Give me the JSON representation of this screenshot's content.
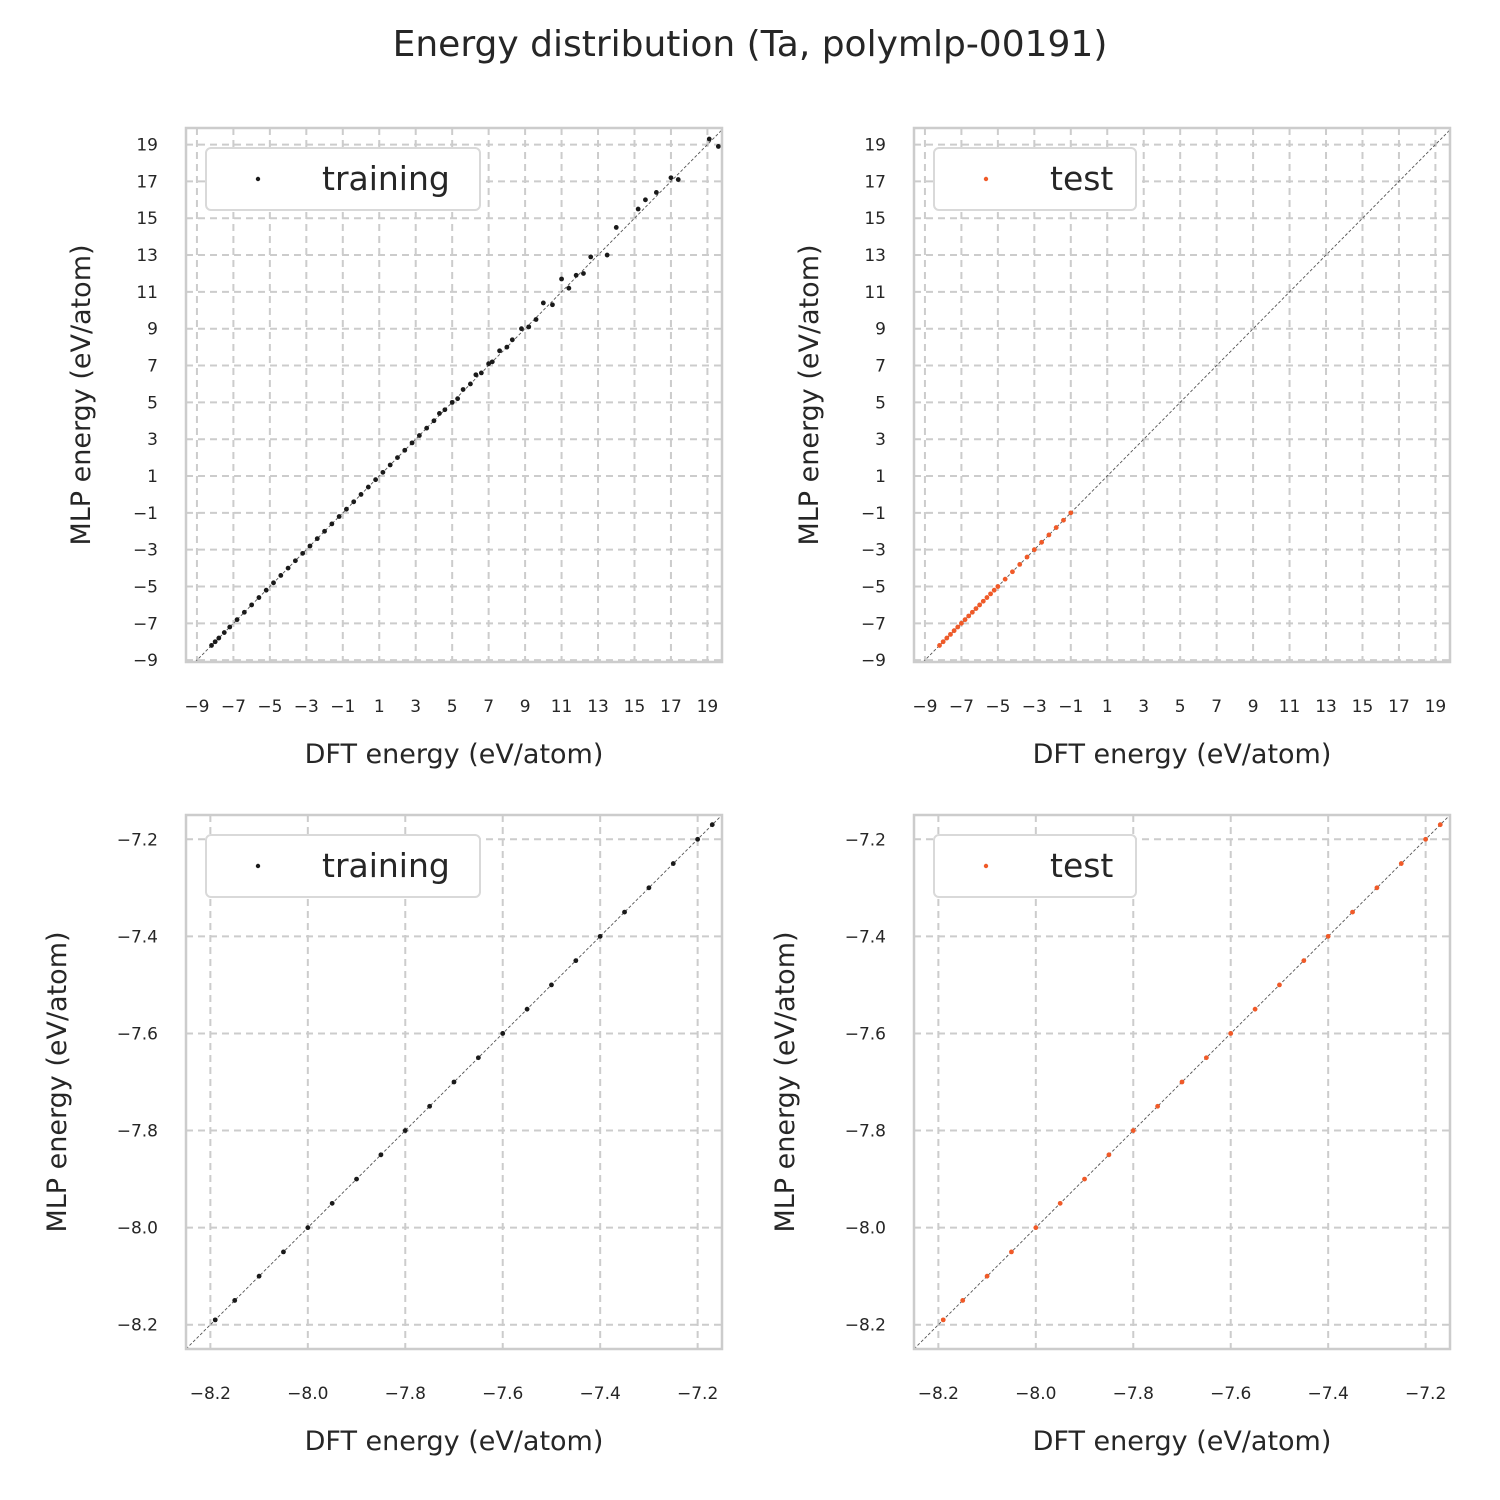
{
  "figure": {
    "title": "Energy distribution (Ta, polymlp-00191)"
  },
  "colors": {
    "training": "#1a1a1a",
    "test": "#f05a28",
    "grid": "#cccccc",
    "diagonal": "#555555"
  },
  "chart_data": [
    {
      "type": "scatter",
      "panel": "top-left",
      "xlabel": "DFT energy (eV/atom)",
      "ylabel": "MLP energy (eV/atom)",
      "xlim": [
        -9.6,
        19.8
      ],
      "ylim": [
        -9.1,
        19.9
      ],
      "xticks": [
        -9,
        -7,
        -5,
        -3,
        -1,
        1,
        3,
        5,
        7,
        9,
        11,
        13,
        15,
        17,
        19
      ],
      "xtick_labels": [
        "−9",
        "−7",
        "−5",
        "−3",
        "−1",
        "1",
        "3",
        "5",
        "7",
        "9",
        "11",
        "13",
        "15",
        "17",
        "19"
      ],
      "yticks": [
        -9,
        -7,
        -5,
        -3,
        -1,
        1,
        3,
        5,
        7,
        9,
        11,
        13,
        15,
        17,
        19
      ],
      "ytick_labels": [
        "−9",
        "−7",
        "−5",
        "−3",
        "−1",
        "1",
        "3",
        "5",
        "7",
        "9",
        "11",
        "13",
        "15",
        "17",
        "19"
      ],
      "grid": true,
      "legend": "upper left",
      "series": [
        {
          "name": "training",
          "color": "#1a1a1a",
          "x": [
            -8.2,
            -8.0,
            -7.8,
            -7.5,
            -7.2,
            -6.8,
            -6.4,
            -6.0,
            -5.6,
            -5.2,
            -4.8,
            -4.4,
            -4.0,
            -3.6,
            -3.2,
            -2.8,
            -2.4,
            -2.0,
            -1.6,
            -1.2,
            -0.8,
            -0.4,
            0.0,
            0.4,
            0.8,
            1.2,
            1.6,
            2.0,
            2.4,
            2.8,
            3.2,
            3.6,
            4.0,
            4.3,
            4.6,
            5.0,
            5.3,
            5.6,
            6.0,
            6.3,
            6.6,
            7.0,
            7.2,
            7.6,
            8.0,
            8.3,
            8.8,
            9.2,
            9.6,
            10.0,
            10.5,
            11.0,
            11.4,
            11.8,
            12.2,
            12.6,
            13.5,
            14.0,
            15.2,
            15.6,
            16.2,
            17.0,
            17.4,
            19.1,
            19.6
          ],
          "y": [
            -8.2,
            -8.0,
            -7.8,
            -7.5,
            -7.2,
            -6.8,
            -6.4,
            -6.0,
            -5.6,
            -5.2,
            -4.8,
            -4.4,
            -4.0,
            -3.6,
            -3.2,
            -2.8,
            -2.4,
            -2.0,
            -1.6,
            -1.2,
            -0.8,
            -0.4,
            0.0,
            0.4,
            0.8,
            1.2,
            1.6,
            2.0,
            2.4,
            2.8,
            3.2,
            3.6,
            4.0,
            4.4,
            4.6,
            5.0,
            5.2,
            5.7,
            6.0,
            6.5,
            6.6,
            7.1,
            7.2,
            7.8,
            8.0,
            8.4,
            9.0,
            9.1,
            9.5,
            10.4,
            10.3,
            11.7,
            11.2,
            11.9,
            12.0,
            12.9,
            13.0,
            14.5,
            15.5,
            16.0,
            16.4,
            17.2,
            17.1,
            19.3,
            18.9
          ]
        }
      ]
    },
    {
      "type": "scatter",
      "panel": "top-right",
      "xlabel": "DFT energy (eV/atom)",
      "ylabel": "MLP energy (eV/atom)",
      "xlim": [
        -9.6,
        19.8
      ],
      "ylim": [
        -9.1,
        19.9
      ],
      "xticks": [
        -9,
        -7,
        -5,
        -3,
        -1,
        1,
        3,
        5,
        7,
        9,
        11,
        13,
        15,
        17,
        19
      ],
      "xtick_labels": [
        "−9",
        "−7",
        "−5",
        "−3",
        "−1",
        "1",
        "3",
        "5",
        "7",
        "9",
        "11",
        "13",
        "15",
        "17",
        "19"
      ],
      "yticks": [
        -9,
        -7,
        -5,
        -3,
        -1,
        1,
        3,
        5,
        7,
        9,
        11,
        13,
        15,
        17,
        19
      ],
      "ytick_labels": [
        "−9",
        "−7",
        "−5",
        "−3",
        "−1",
        "1",
        "3",
        "5",
        "7",
        "9",
        "11",
        "13",
        "15",
        "17",
        "19"
      ],
      "grid": true,
      "legend": "upper left",
      "series": [
        {
          "name": "test",
          "color": "#f05a28",
          "x": [
            -8.2,
            -8.0,
            -7.8,
            -7.6,
            -7.4,
            -7.2,
            -7.0,
            -6.8,
            -6.6,
            -6.4,
            -6.2,
            -6.0,
            -5.8,
            -5.6,
            -5.4,
            -5.2,
            -5.0,
            -4.6,
            -4.2,
            -3.8,
            -3.4,
            -3.0,
            -2.6,
            -2.2,
            -1.8,
            -1.4,
            -1.0
          ],
          "y": [
            -8.2,
            -8.0,
            -7.8,
            -7.6,
            -7.4,
            -7.2,
            -7.0,
            -6.8,
            -6.6,
            -6.4,
            -6.2,
            -6.0,
            -5.8,
            -5.6,
            -5.4,
            -5.2,
            -5.0,
            -4.6,
            -4.2,
            -3.8,
            -3.4,
            -3.0,
            -2.6,
            -2.2,
            -1.8,
            -1.4,
            -1.0
          ]
        }
      ]
    },
    {
      "type": "scatter",
      "panel": "bottom-left",
      "xlabel": "DFT energy (eV/atom)",
      "ylabel": "MLP energy (eV/atom)",
      "xlim": [
        -8.25,
        -7.15
      ],
      "ylim": [
        -8.25,
        -7.15
      ],
      "xticks": [
        -8.2,
        -8.0,
        -7.8,
        -7.6,
        -7.4,
        -7.2
      ],
      "xtick_labels": [
        "−8.2",
        "−8.0",
        "−7.8",
        "−7.6",
        "−7.4",
        "−7.2"
      ],
      "yticks": [
        -8.2,
        -8.0,
        -7.8,
        -7.6,
        -7.4,
        -7.2
      ],
      "ytick_labels": [
        "−8.2",
        "−8.0",
        "−7.8",
        "−7.6",
        "−7.4",
        "−7.2"
      ],
      "grid": true,
      "legend": "upper left",
      "series": [
        {
          "name": "training",
          "color": "#1a1a1a",
          "x": [
            -8.19,
            -8.15,
            -8.1,
            -8.05,
            -8.0,
            -7.95,
            -7.9,
            -7.85,
            -7.8,
            -7.75,
            -7.7,
            -7.65,
            -7.6,
            -7.55,
            -7.5,
            -7.45,
            -7.4,
            -7.35,
            -7.3,
            -7.25,
            -7.2,
            -7.17
          ],
          "y": [
            -8.19,
            -8.15,
            -8.1,
            -8.05,
            -8.0,
            -7.95,
            -7.9,
            -7.85,
            -7.8,
            -7.75,
            -7.7,
            -7.65,
            -7.6,
            -7.55,
            -7.5,
            -7.45,
            -7.4,
            -7.35,
            -7.3,
            -7.25,
            -7.2,
            -7.17
          ]
        }
      ]
    },
    {
      "type": "scatter",
      "panel": "bottom-right",
      "xlabel": "DFT energy (eV/atom)",
      "ylabel": "MLP energy (eV/atom)",
      "xlim": [
        -8.25,
        -7.15
      ],
      "ylim": [
        -8.25,
        -7.15
      ],
      "xticks": [
        -8.2,
        -8.0,
        -7.8,
        -7.6,
        -7.4,
        -7.2
      ],
      "xtick_labels": [
        "−8.2",
        "−8.0",
        "−7.8",
        "−7.6",
        "−7.4",
        "−7.2"
      ],
      "yticks": [
        -8.2,
        -8.0,
        -7.8,
        -7.6,
        -7.4,
        -7.2
      ],
      "ytick_labels": [
        "−8.2",
        "−8.0",
        "−7.8",
        "−7.6",
        "−7.4",
        "−7.2"
      ],
      "grid": true,
      "legend": "upper left",
      "series": [
        {
          "name": "test",
          "color": "#f05a28",
          "x": [
            -8.19,
            -8.15,
            -8.1,
            -8.05,
            -8.0,
            -7.95,
            -7.9,
            -7.85,
            -7.8,
            -7.75,
            -7.7,
            -7.65,
            -7.6,
            -7.55,
            -7.5,
            -7.45,
            -7.4,
            -7.35,
            -7.3,
            -7.25,
            -7.2,
            -7.17
          ],
          "y": [
            -8.19,
            -8.15,
            -8.1,
            -8.05,
            -8.0,
            -7.95,
            -7.9,
            -7.85,
            -7.8,
            -7.75,
            -7.7,
            -7.65,
            -7.6,
            -7.55,
            -7.5,
            -7.45,
            -7.4,
            -7.35,
            -7.3,
            -7.25,
            -7.2,
            -7.17
          ]
        }
      ]
    }
  ]
}
